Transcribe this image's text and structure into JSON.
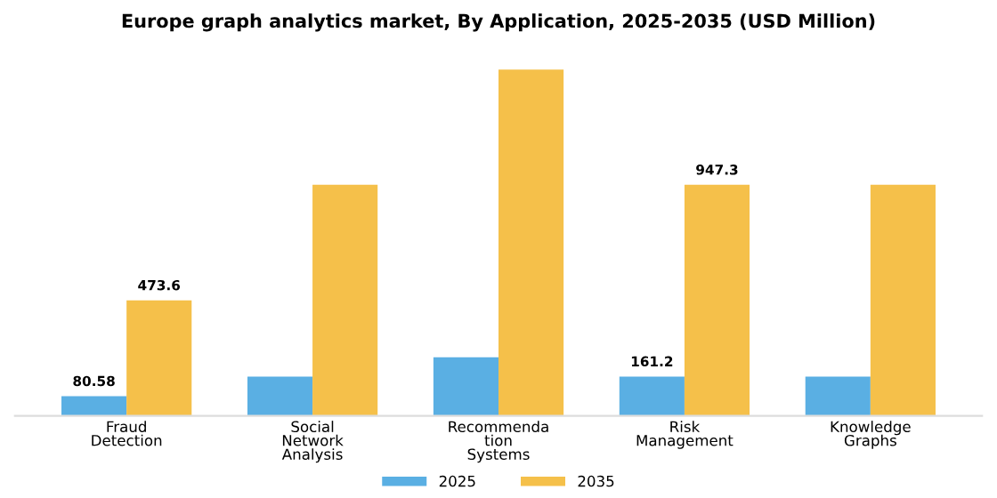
{
  "chart_data": {
    "type": "bar",
    "title": "Europe graph analytics market, By Application, 2025-2035 (USD Million)",
    "categories": [
      "Fraud\nDetection",
      "Social\nNetwork\nAnalysis",
      "Recommenda\ntion\nSystems",
      "Risk\nManagement",
      "Knowledge\nGraphs"
    ],
    "series": [
      {
        "name": "2025",
        "color": "#5aafe3",
        "values": [
          80.58,
          161.2,
          240,
          161.2,
          161.2
        ],
        "value_labels": [
          "80.58",
          null,
          null,
          "161.2",
          null
        ]
      },
      {
        "name": "2035",
        "color": "#f5c04a",
        "values": [
          473.6,
          947.3,
          1420,
          947.3,
          947.3
        ],
        "value_labels": [
          "473.6",
          null,
          null,
          "947.3",
          null
        ]
      }
    ],
    "legend": "bottom",
    "grid": false
  }
}
